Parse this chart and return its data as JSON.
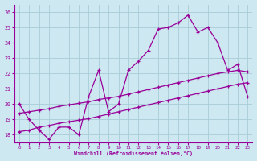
{
  "xlabel": "Windchill (Refroidissement éolien,°C)",
  "background_color": "#cde8f0",
  "grid_color": "#a8ccd8",
  "line_color": "#990099",
  "x_ticks": [
    0,
    1,
    2,
    3,
    4,
    5,
    6,
    7,
    8,
    9,
    10,
    11,
    12,
    13,
    14,
    15,
    16,
    17,
    18,
    19,
    20,
    21,
    22,
    23
  ],
  "y_ticks": [
    18,
    19,
    20,
    21,
    22,
    23,
    24,
    25,
    26
  ],
  "ylim": [
    17.5,
    26.5
  ],
  "xlim": [
    -0.5,
    23.5
  ],
  "series1_x": [
    0,
    1,
    2,
    3,
    4,
    5,
    6,
    7,
    8,
    9,
    10,
    11,
    12,
    13,
    14,
    15,
    16,
    17,
    18,
    19,
    20,
    21,
    22,
    23
  ],
  "series1_y": [
    20.0,
    19.0,
    18.3,
    17.7,
    18.5,
    18.5,
    18.0,
    20.5,
    22.2,
    19.5,
    20.0,
    22.2,
    22.8,
    23.5,
    24.9,
    25.0,
    25.3,
    25.8,
    24.7,
    25.0,
    24.0,
    22.2,
    22.6,
    20.5
  ],
  "series2_x": [
    0,
    1,
    2,
    3,
    4,
    5,
    6,
    7,
    8,
    9,
    10,
    11,
    12,
    13,
    14,
    15,
    16,
    17,
    18,
    19,
    20,
    21,
    22,
    23
  ],
  "series2_y": [
    19.4,
    19.5,
    19.6,
    19.7,
    19.85,
    19.95,
    20.05,
    20.15,
    20.3,
    20.4,
    20.5,
    20.65,
    20.8,
    20.95,
    21.1,
    21.25,
    21.4,
    21.55,
    21.7,
    21.85,
    22.0,
    22.1,
    22.2,
    22.1
  ],
  "series3_x": [
    0,
    1,
    2,
    3,
    4,
    5,
    6,
    7,
    8,
    9,
    10,
    11,
    12,
    13,
    14,
    15,
    16,
    17,
    18,
    19,
    20,
    21,
    22,
    23
  ],
  "series3_y": [
    18.2,
    18.3,
    18.5,
    18.6,
    18.75,
    18.85,
    18.95,
    19.05,
    19.2,
    19.35,
    19.5,
    19.65,
    19.8,
    19.95,
    20.1,
    20.25,
    20.4,
    20.55,
    20.7,
    20.85,
    21.0,
    21.15,
    21.3,
    21.4
  ]
}
